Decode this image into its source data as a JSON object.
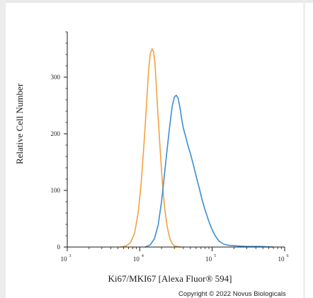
{
  "chart_data": {
    "type": "line",
    "title": "",
    "xlabel": "Ki67/MKI67 [Alexa Fluor® 594]",
    "ylabel": "Relative Cell Number",
    "x_scale": "log",
    "xlim": [
      1000,
      1000000
    ],
    "ylim": [
      0,
      380
    ],
    "x_ticks": [
      {
        "value": 1000,
        "base": "10",
        "exp": "3"
      },
      {
        "value": 10000,
        "base": "10",
        "exp": "4"
      },
      {
        "value": 100000,
        "base": "10",
        "exp": "5"
      },
      {
        "value": 1000000,
        "base": "10",
        "exp": "6"
      }
    ],
    "y_ticks": [
      0,
      100,
      200,
      300
    ],
    "grid": false,
    "legend": "none",
    "series": [
      {
        "color": "#f5a040",
        "x": [
          5500,
          6500,
          7500,
          8500,
          9500,
          10500,
          11500,
          12500,
          13200,
          14000,
          14800,
          15500,
          16200,
          17000,
          18000,
          19200,
          20500,
          22000,
          24000,
          26000,
          28000,
          30000,
          33000,
          37000
        ],
        "y": [
          0,
          2,
          8,
          25,
          60,
          115,
          185,
          260,
          310,
          342,
          350,
          345,
          325,
          280,
          225,
          170,
          115,
          70,
          35,
          15,
          6,
          2,
          1,
          0
        ]
      },
      {
        "color": "#3a8fd6",
        "x": [
          12000,
          14000,
          16000,
          18000,
          20000,
          22000,
          24000,
          26000,
          28000,
          30000,
          32000,
          34000,
          36000,
          38000,
          40000,
          43000,
          46000,
          50000,
          55000,
          60000,
          66000,
          72000,
          80000,
          90000,
          100000,
          110000,
          125000,
          145000,
          170000,
          220000,
          300000,
          450000,
          700000
        ],
        "y": [
          0,
          4,
          15,
          40,
          80,
          130,
          175,
          215,
          248,
          265,
          268,
          262,
          245,
          225,
          210,
          195,
          180,
          165,
          145,
          125,
          105,
          85,
          65,
          45,
          30,
          20,
          10,
          5,
          3,
          2,
          1,
          1,
          0
        ]
      }
    ]
  },
  "copyright": "Copyright © 2022 Novus Biologicals"
}
